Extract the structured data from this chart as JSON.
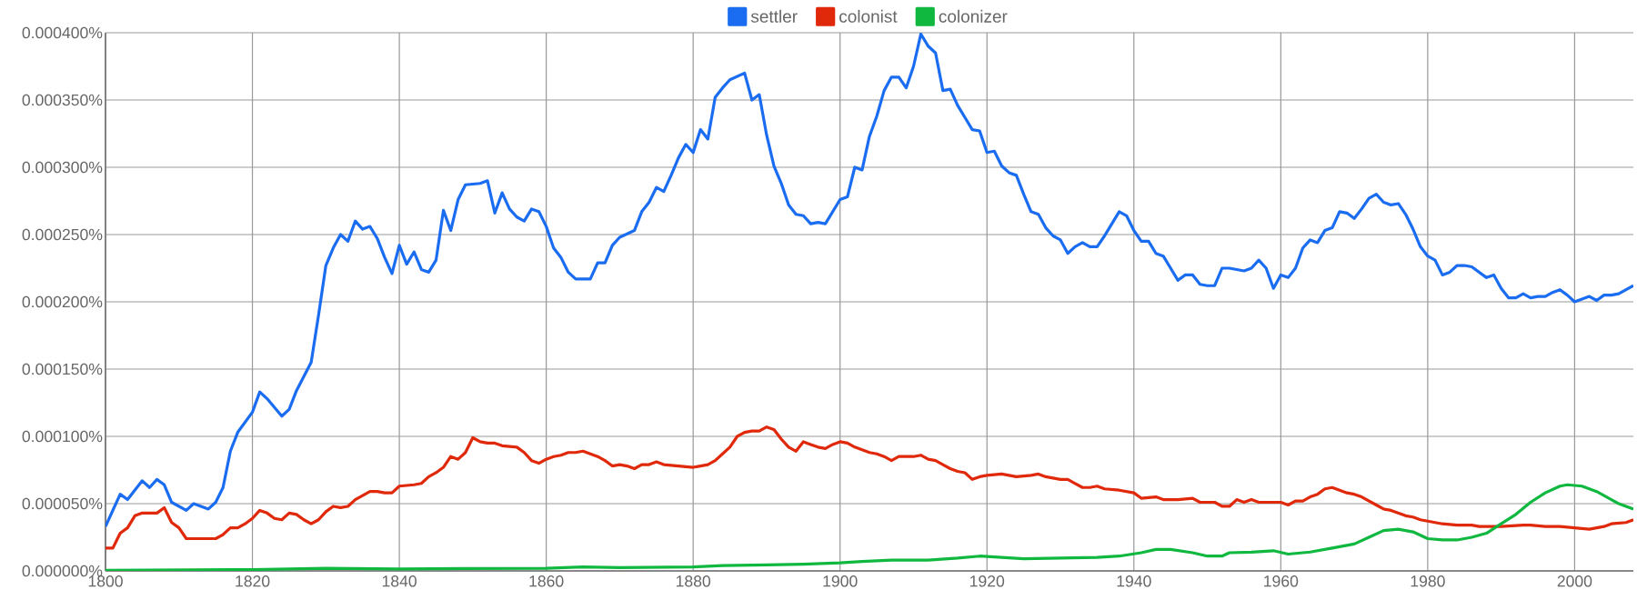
{
  "chart_data": {
    "type": "line",
    "xlim": [
      1800,
      2008
    ],
    "ylim": [
      0,
      0.0004
    ],
    "xticks": [
      1800,
      1820,
      1840,
      1860,
      1880,
      1900,
      1920,
      1940,
      1960,
      1980,
      2000
    ],
    "yticks": [
      {
        "value": 0,
        "label": "0.000000%"
      },
      {
        "value": 5e-05,
        "label": "0.000050%"
      },
      {
        "value": 0.0001,
        "label": "0.000100%"
      },
      {
        "value": 0.00015,
        "label": "0.000150%"
      },
      {
        "value": 0.0002,
        "label": "0.000200%"
      },
      {
        "value": 0.00025,
        "label": "0.000250%"
      },
      {
        "value": 0.0003,
        "label": "0.000300%"
      },
      {
        "value": 0.00035,
        "label": "0.000350%"
      },
      {
        "value": 0.0004,
        "label": "0.000400%"
      }
    ],
    "grid": true,
    "legend": "top",
    "marker": "none",
    "line_style": "solid",
    "series": [
      {
        "name": "settler",
        "color": "#1a6cf0",
        "x": [
          1800,
          1802,
          1803,
          1805,
          1806,
          1807,
          1808,
          1809,
          1811,
          1812,
          1814,
          1815,
          1816,
          1817,
          1818,
          1820,
          1821,
          1822,
          1824,
          1825,
          1826,
          1828,
          1829,
          1830,
          1831,
          1832,
          1833,
          1834,
          1835,
          1836,
          1837,
          1838,
          1839,
          1840,
          1841,
          1842,
          1843,
          1844,
          1845,
          1846,
          1847,
          1848,
          1849,
          1851,
          1852,
          1853,
          1854,
          1855,
          1856,
          1857,
          1858,
          1859,
          1860,
          1861,
          1862,
          1863,
          1864,
          1866,
          1867,
          1868,
          1869,
          1870,
          1872,
          1873,
          1874,
          1875,
          1876,
          1877,
          1878,
          1879,
          1880,
          1881,
          1882,
          1883,
          1884,
          1885,
          1887,
          1888,
          1889,
          1890,
          1891,
          1892,
          1893,
          1894,
          1895,
          1896,
          1897,
          1898,
          1899,
          1900,
          1901,
          1902,
          1903,
          1904,
          1905,
          1906,
          1907,
          1908,
          1909,
          1910,
          1911,
          1912,
          1913,
          1914,
          1915,
          1916,
          1917,
          1918,
          1919,
          1920,
          1921,
          1922,
          1923,
          1924,
          1925,
          1926,
          1927,
          1928,
          1929,
          1930,
          1931,
          1932,
          1933,
          1934,
          1935,
          1936,
          1937,
          1938,
          1939,
          1940,
          1941,
          1942,
          1943,
          1944,
          1945,
          1946,
          1947,
          1948,
          1949,
          1950,
          1951,
          1952,
          1953,
          1954,
          1955,
          1956,
          1957,
          1958,
          1959,
          1960,
          1961,
          1962,
          1963,
          1964,
          1965,
          1966,
          1967,
          1968,
          1969,
          1970,
          1971,
          1972,
          1973,
          1974,
          1975,
          1976,
          1977,
          1978,
          1979,
          1980,
          1981,
          1982,
          1983,
          1984,
          1985,
          1986,
          1987,
          1988,
          1989,
          1990,
          1991,
          1992,
          1993,
          1994,
          1995,
          1996,
          1997,
          1998,
          1999,
          2000,
          2001,
          2002,
          2003,
          2004,
          2005,
          2006,
          2007,
          2008
        ],
        "values": [
          3.3e-05,
          5.7e-05,
          5.3e-05,
          6.7e-05,
          6.2e-05,
          6.8e-05,
          6.4e-05,
          5.1e-05,
          4.5e-05,
          5e-05,
          4.6e-05,
          5.1e-05,
          6.2e-05,
          8.9e-05,
          0.000103,
          0.000118,
          0.000133,
          0.000128,
          0.000115,
          0.00012,
          0.000134,
          0.000155,
          0.00019,
          0.000227,
          0.00024,
          0.00025,
          0.000245,
          0.00026,
          0.000254,
          0.000256,
          0.000247,
          0.000233,
          0.000221,
          0.000242,
          0.000228,
          0.000237,
          0.000224,
          0.000222,
          0.000231,
          0.000268,
          0.000253,
          0.000276,
          0.000287,
          0.000288,
          0.00029,
          0.000266,
          0.000281,
          0.000269,
          0.000263,
          0.00026,
          0.000269,
          0.000267,
          0.000256,
          0.00024,
          0.000233,
          0.000222,
          0.000217,
          0.000217,
          0.000229,
          0.000229,
          0.000242,
          0.000248,
          0.000253,
          0.000267,
          0.000274,
          0.000285,
          0.000282,
          0.000294,
          0.000307,
          0.000317,
          0.000311,
          0.000328,
          0.000321,
          0.000352,
          0.000359,
          0.000365,
          0.00037,
          0.00035,
          0.000354,
          0.000324,
          0.000301,
          0.000288,
          0.000272,
          0.000265,
          0.000264,
          0.000258,
          0.000259,
          0.000258,
          0.000267,
          0.000276,
          0.000278,
          0.0003,
          0.000298,
          0.000323,
          0.000338,
          0.000357,
          0.000367,
          0.000367,
          0.000359,
          0.000375,
          0.000399,
          0.00039,
          0.000385,
          0.000357,
          0.000358,
          0.000346,
          0.000337,
          0.000328,
          0.000327,
          0.000311,
          0.000312,
          0.000301,
          0.000296,
          0.000294,
          0.00028,
          0.000267,
          0.000265,
          0.000255,
          0.000249,
          0.000246,
          0.000236,
          0.000241,
          0.000244,
          0.000241,
          0.000241,
          0.000249,
          0.000258,
          0.000267,
          0.000264,
          0.000253,
          0.000245,
          0.000245,
          0.000236,
          0.000234,
          0.000225,
          0.000216,
          0.00022,
          0.00022,
          0.000213,
          0.000212,
          0.000212,
          0.000225,
          0.000225,
          0.000224,
          0.000223,
          0.000225,
          0.000231,
          0.000225,
          0.00021,
          0.00022,
          0.000218,
          0.000225,
          0.00024,
          0.000246,
          0.000244,
          0.000253,
          0.000255,
          0.000267,
          0.000266,
          0.000262,
          0.000269,
          0.000277,
          0.00028,
          0.000274,
          0.000272,
          0.000273,
          0.000265,
          0.000254,
          0.000241,
          0.000234,
          0.000231,
          0.00022,
          0.000222,
          0.000227,
          0.000227,
          0.000226,
          0.000222,
          0.000218,
          0.00022,
          0.00021,
          0.000203,
          0.000203,
          0.000206,
          0.000203,
          0.000204,
          0.000204,
          0.000207,
          0.000209,
          0.000205,
          0.0002,
          0.000202,
          0.000204,
          0.000201,
          0.000205,
          0.000205,
          0.000206,
          0.000209,
          0.000212
        ]
      },
      {
        "name": "colonist",
        "color": "#e0280a",
        "x": [
          1800,
          1801,
          1802,
          1803,
          1804,
          1805,
          1807,
          1808,
          1809,
          1810,
          1811,
          1813,
          1815,
          1816,
          1817,
          1818,
          1819,
          1820,
          1821,
          1822,
          1823,
          1824,
          1825,
          1826,
          1827,
          1828,
          1829,
          1830,
          1831,
          1832,
          1833,
          1834,
          1835,
          1836,
          1837,
          1838,
          1839,
          1840,
          1842,
          1843,
          1844,
          1845,
          1846,
          1847,
          1848,
          1849,
          1850,
          1851,
          1852,
          1853,
          1854,
          1856,
          1857,
          1858,
          1859,
          1860,
          1861,
          1862,
          1863,
          1864,
          1865,
          1866,
          1867,
          1868,
          1869,
          1870,
          1871,
          1872,
          1873,
          1874,
          1875,
          1876,
          1878,
          1880,
          1881,
          1882,
          1883,
          1884,
          1885,
          1886,
          1887,
          1888,
          1889,
          1890,
          1891,
          1892,
          1893,
          1894,
          1895,
          1896,
          1897,
          1898,
          1899,
          1900,
          1901,
          1902,
          1903,
          1904,
          1905,
          1906,
          1907,
          1908,
          1910,
          1911,
          1912,
          1913,
          1914,
          1915,
          1916,
          1917,
          1918,
          1919,
          1920,
          1922,
          1924,
          1926,
          1927,
          1928,
          1930,
          1931,
          1932,
          1933,
          1934,
          1935,
          1936,
          1938,
          1940,
          1941,
          1943,
          1944,
          1946,
          1948,
          1949,
          1950,
          1951,
          1952,
          1953,
          1954,
          1955,
          1956,
          1957,
          1958,
          1960,
          1961,
          1962,
          1963,
          1964,
          1965,
          1966,
          1967,
          1968,
          1969,
          1970,
          1971,
          1972,
          1973,
          1974,
          1975,
          1976,
          1977,
          1978,
          1979,
          1980,
          1981,
          1982,
          1984,
          1986,
          1987,
          1990,
          1993,
          1994,
          1996,
          1998,
          2000,
          2002,
          2004,
          2005,
          2007,
          2008
        ],
        "values": [
          1.7e-05,
          1.7e-05,
          2.8e-05,
          3.2e-05,
          4.1e-05,
          4.3e-05,
          4.3e-05,
          4.7e-05,
          3.6e-05,
          3.2e-05,
          2.4e-05,
          2.4e-05,
          2.4e-05,
          2.7e-05,
          3.2e-05,
          3.2e-05,
          3.5e-05,
          3.9e-05,
          4.5e-05,
          4.3e-05,
          3.9e-05,
          3.8e-05,
          4.3e-05,
          4.2e-05,
          3.8e-05,
          3.5e-05,
          3.8e-05,
          4.4e-05,
          4.8e-05,
          4.7e-05,
          4.8e-05,
          5.3e-05,
          5.6e-05,
          5.9e-05,
          5.9e-05,
          5.8e-05,
          5.8e-05,
          6.3e-05,
          6.4e-05,
          6.5e-05,
          7e-05,
          7.3e-05,
          7.7e-05,
          8.5e-05,
          8.3e-05,
          8.8e-05,
          9.9e-05,
          9.6e-05,
          9.5e-05,
          9.5e-05,
          9.3e-05,
          9.2e-05,
          8.8e-05,
          8.2e-05,
          8e-05,
          8.3e-05,
          8.5e-05,
          8.6e-05,
          8.8e-05,
          8.8e-05,
          8.9e-05,
          8.7e-05,
          8.5e-05,
          8.2e-05,
          7.8e-05,
          7.9e-05,
          7.8e-05,
          7.6e-05,
          7.9e-05,
          7.9e-05,
          8.1e-05,
          7.9e-05,
          7.8e-05,
          7.7e-05,
          7.8e-05,
          7.9e-05,
          8.2e-05,
          8.7e-05,
          9.2e-05,
          0.0001,
          0.000103,
          0.000104,
          0.000104,
          0.000107,
          0.000105,
          9.8e-05,
          9.2e-05,
          8.9e-05,
          9.6e-05,
          9.4e-05,
          9.2e-05,
          9.1e-05,
          9.4e-05,
          9.6e-05,
          9.5e-05,
          9.2e-05,
          9e-05,
          8.8e-05,
          8.7e-05,
          8.5e-05,
          8.2e-05,
          8.5e-05,
          8.5e-05,
          8.6e-05,
          8.3e-05,
          8.2e-05,
          7.9e-05,
          7.6e-05,
          7.4e-05,
          7.3e-05,
          6.8e-05,
          7e-05,
          7.1e-05,
          7.2e-05,
          7e-05,
          7.1e-05,
          7.2e-05,
          7e-05,
          6.8e-05,
          6.8e-05,
          6.5e-05,
          6.2e-05,
          6.2e-05,
          6.3e-05,
          6.1e-05,
          6e-05,
          5.8e-05,
          5.4e-05,
          5.5e-05,
          5.3e-05,
          5.3e-05,
          5.4e-05,
          5.1e-05,
          5.1e-05,
          5.1e-05,
          4.8e-05,
          4.8e-05,
          5.3e-05,
          5.1e-05,
          5.3e-05,
          5.1e-05,
          5.1e-05,
          5.1e-05,
          4.9e-05,
          5.2e-05,
          5.2e-05,
          5.5e-05,
          5.7e-05,
          6.1e-05,
          6.2e-05,
          6e-05,
          5.8e-05,
          5.7e-05,
          5.5e-05,
          5.2e-05,
          4.9e-05,
          4.6e-05,
          4.5e-05,
          4.3e-05,
          4.1e-05,
          4e-05,
          3.8e-05,
          3.7e-05,
          3.6e-05,
          3.5e-05,
          3.4e-05,
          3.4e-05,
          3.3e-05,
          3.3e-05,
          3.4e-05,
          3.4e-05,
          3.3e-05,
          3.3e-05,
          3.2e-05,
          3.1e-05,
          3.3e-05,
          3.5e-05,
          3.6e-05,
          3.8e-05
        ]
      },
      {
        "name": "colonizer",
        "color": "#10b840",
        "x": [
          1800,
          1820,
          1830,
          1840,
          1860,
          1865,
          1870,
          1880,
          1884,
          1890,
          1895,
          1900,
          1903,
          1907,
          1912,
          1916,
          1919,
          1922,
          1925,
          1930,
          1935,
          1938,
          1941,
          1943,
          1945,
          1948,
          1950,
          1952,
          1953,
          1956,
          1959,
          1961,
          1964,
          1967,
          1970,
          1972,
          1974,
          1976,
          1978,
          1980,
          1982,
          1984,
          1986,
          1988,
          1990,
          1992,
          1994,
          1996,
          1998,
          1999,
          2001,
          2003,
          2005,
          2006,
          2008
        ],
        "values": [
          5e-07,
          1e-06,
          2e-06,
          1.5e-06,
          2e-06,
          3e-06,
          2.5e-06,
          3e-06,
          4e-06,
          4.5e-06,
          5e-06,
          6e-06,
          7e-06,
          8e-06,
          8e-06,
          9.5e-06,
          1.1e-05,
          1e-05,
          9e-06,
          9.5e-06,
          1e-05,
          1.1e-05,
          1.35e-05,
          1.6e-05,
          1.6e-05,
          1.35e-05,
          1.1e-05,
          1.1e-05,
          1.35e-05,
          1.4e-05,
          1.5e-05,
          1.25e-05,
          1.4e-05,
          1.7e-05,
          2e-05,
          2.5e-05,
          3e-05,
          3.1e-05,
          2.9e-05,
          2.4e-05,
          2.3e-05,
          2.3e-05,
          2.5e-05,
          2.8e-05,
          3.5e-05,
          4.2e-05,
          5.1e-05,
          5.8e-05,
          6.3e-05,
          6.4e-05,
          6.3e-05,
          5.9e-05,
          5.3e-05,
          5e-05,
          4.6e-05
        ]
      }
    ]
  }
}
